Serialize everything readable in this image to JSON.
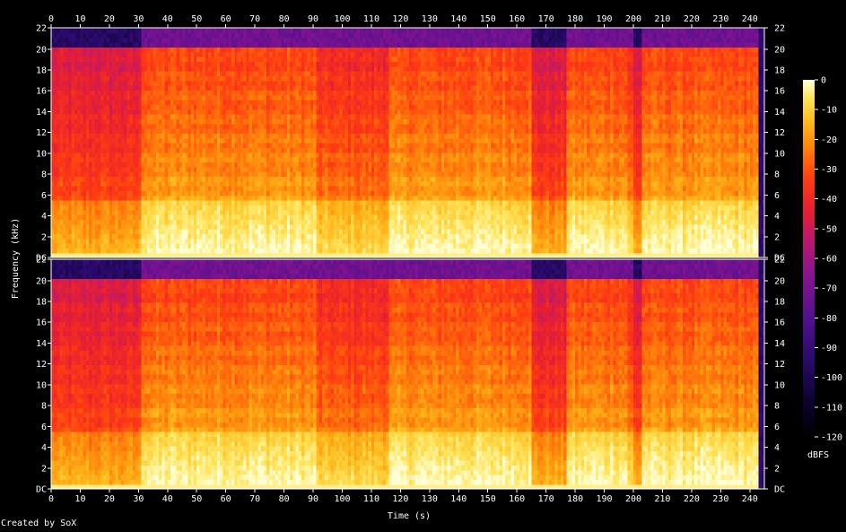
{
  "chart_data": {
    "type": "heatmap",
    "xlabel": "Time (s)",
    "ylabel": "Frequency (kHz)",
    "x_ticks": [
      0,
      10,
      20,
      30,
      40,
      50,
      60,
      70,
      80,
      90,
      100,
      110,
      120,
      130,
      140,
      150,
      160,
      170,
      180,
      190,
      200,
      210,
      220,
      230,
      240
    ],
    "xlim": [
      0,
      245
    ],
    "y_ticks": [
      "DC",
      "2",
      "4",
      "6",
      "8",
      "10",
      "12",
      "14",
      "16",
      "18",
      "20",
      "22"
    ],
    "y_tick_values": [
      0,
      2,
      4,
      6,
      8,
      10,
      12,
      14,
      16,
      18,
      20,
      22
    ],
    "ylim": [
      0,
      22.05
    ],
    "channels": [
      {
        "name": "",
        "position": "top"
      },
      {
        "name": "",
        "position": "bottom"
      }
    ],
    "colorbar": {
      "label": "dBFS",
      "ticks": [
        0,
        -10,
        -20,
        -30,
        -40,
        -50,
        -60,
        -70,
        -80,
        -90,
        -100,
        -110,
        -120
      ],
      "range": [
        -120,
        0
      ]
    },
    "content_regions": {
      "spectral_cutoff_khz": 20,
      "high_energy_band_khz": [
        0,
        5.5
      ],
      "quiet_sections_s": [
        [
          0,
          31
        ],
        [
          165,
          177
        ],
        [
          200,
          203
        ]
      ],
      "busy_sections_s": [
        [
          31,
          66
        ],
        [
          66,
          91
        ],
        [
          116,
          165
        ],
        [
          177,
          198
        ],
        [
          203,
          243
        ]
      ],
      "track_end_s": 243
    }
  },
  "footer": {
    "credit": "Created by SoX"
  },
  "colors": {
    "background": "#000000",
    "axis": "#ffffff"
  }
}
